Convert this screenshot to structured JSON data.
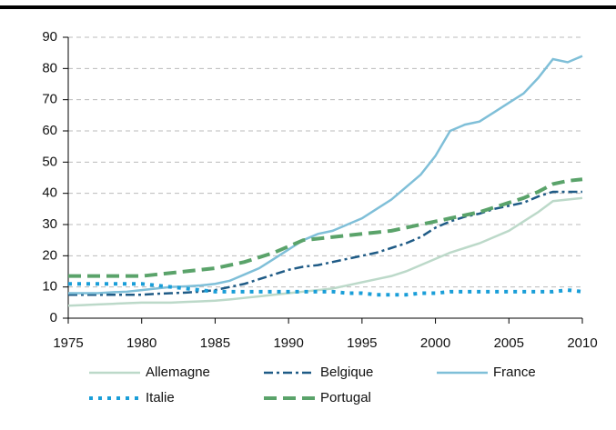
{
  "chart_data": {
    "type": "line",
    "x": [
      1975,
      1976,
      1977,
      1978,
      1979,
      1980,
      1981,
      1982,
      1983,
      1984,
      1985,
      1986,
      1987,
      1988,
      1989,
      1990,
      1991,
      1992,
      1993,
      1994,
      1995,
      1996,
      1997,
      1998,
      1999,
      2000,
      2001,
      2002,
      2003,
      2004,
      2005,
      2006,
      2007,
      2008,
      2009,
      2010
    ],
    "series": [
      {
        "name": "Allemagne",
        "color": "#bcd9c9",
        "style": "solid",
        "values": [
          4,
          4.2,
          4.4,
          4.6,
          4.8,
          5,
          5,
          5,
          5.2,
          5.4,
          5.6,
          6,
          6.5,
          7,
          7.5,
          8,
          8.5,
          9,
          9.5,
          10.5,
          11.5,
          12.5,
          13.5,
          15,
          17,
          19,
          21,
          22.5,
          24,
          26,
          28,
          31,
          34,
          37.5,
          38,
          38.5
        ]
      },
      {
        "name": "Belgique",
        "color": "#1f5b86",
        "style": "dashdot",
        "values": [
          7.5,
          7.5,
          7.5,
          7.5,
          7.5,
          7.5,
          7.8,
          8,
          8.2,
          8.5,
          9,
          10,
          11,
          12.5,
          14,
          15.5,
          16.5,
          17,
          18,
          19,
          20,
          21,
          22.5,
          24,
          26,
          29,
          31,
          32.5,
          33.5,
          35,
          36,
          37,
          39,
          40.5,
          40.5,
          40.5
        ]
      },
      {
        "name": "France",
        "color": "#7fbfd8",
        "style": "solid",
        "values": [
          8,
          8,
          8,
          8.3,
          8.5,
          9,
          9.5,
          10,
          10.2,
          10.5,
          11,
          12,
          14,
          16,
          19,
          22,
          25,
          27,
          28,
          30,
          32,
          35,
          38,
          42,
          46,
          52,
          60,
          62,
          63,
          66,
          69,
          72,
          77,
          83,
          82,
          84
        ]
      },
      {
        "name": "Italie",
        "color": "#1a9ed8",
        "style": "dotted",
        "values": [
          11,
          11,
          11,
          11,
          11,
          11,
          10.5,
          10,
          9.5,
          9,
          8.5,
          8.5,
          8.5,
          8.5,
          8.5,
          8.5,
          8.5,
          8.5,
          8.5,
          8,
          8,
          7.5,
          7.5,
          7.5,
          8,
          8,
          8.5,
          8.5,
          8.5,
          8.5,
          8.5,
          8.5,
          8.5,
          8.5,
          9,
          8.5
        ]
      },
      {
        "name": "Portugal",
        "color": "#5aa36a",
        "style": "dashed",
        "values": [
          13.5,
          13.5,
          13.5,
          13.5,
          13.5,
          13.5,
          14,
          14.5,
          15,
          15.5,
          16,
          17,
          18,
          19.5,
          21,
          23,
          25,
          25.5,
          26,
          26.5,
          27,
          27.5,
          28,
          29,
          30,
          31,
          32,
          33,
          34,
          35.5,
          37,
          38.5,
          40.5,
          43,
          44,
          44.5
        ]
      }
    ],
    "xlim": [
      1975,
      2010
    ],
    "xticks": [
      1975,
      1980,
      1985,
      1990,
      1995,
      2000,
      2005,
      2010
    ],
    "ylim": [
      0,
      90
    ],
    "yticks": [
      0,
      10,
      20,
      30,
      40,
      50,
      60,
      70,
      80,
      90
    ],
    "grid": true
  }
}
